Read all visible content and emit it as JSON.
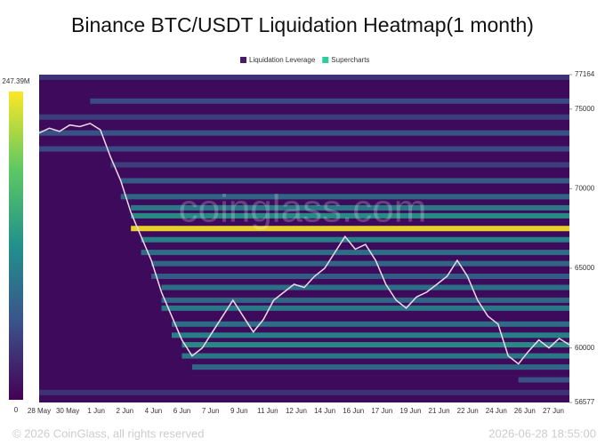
{
  "chart_data": {
    "type": "heatmap",
    "title": "Binance BTC/USDT Liquidation Heatmap(1 month)",
    "legend": [
      {
        "name": "Liquidation Leverage",
        "color": "#4b1a6b"
      },
      {
        "name": "Supercharts",
        "color": "#2ecc9a"
      }
    ],
    "categories": [
      "28 May",
      "30 May",
      "1 Jun",
      "2 Jun",
      "4 Jun",
      "6 Jun",
      "7 Jun",
      "9 Jun",
      "11 Jun",
      "12 Jun",
      "14 Jun",
      "16 Jun",
      "17 Jun",
      "19 Jun",
      "21 Jun",
      "22 Jun",
      "24 Jun",
      "26 Jun",
      "27 Jun"
    ],
    "ylim": [
      56577,
      77164
    ],
    "yticks": [
      56577,
      60000,
      65000,
      70000,
      75000,
      77164
    ],
    "colorbar": {
      "min": 0,
      "max": {
        "value": 247.39,
        "label": "247.39M"
      }
    },
    "background": "#3e0b5c",
    "price_color": "#f0d8ea",
    "price": [
      73500,
      73800,
      73600,
      74000,
      73900,
      74100,
      73700,
      72000,
      70500,
      68500,
      67000,
      65500,
      63500,
      62000,
      60500,
      59500,
      60000,
      61000,
      62000,
      63000,
      62000,
      61000,
      61800,
      63000,
      63500,
      64000,
      63800,
      64500,
      65000,
      66000,
      67000,
      66200,
      66500,
      65500,
      64000,
      63000,
      62500,
      63200,
      63500,
      64000,
      64500,
      65500,
      64500,
      63000,
      62000,
      61500,
      59500,
      59000,
      59800,
      60500,
      60000,
      60600,
      60200
    ],
    "levels": [
      {
        "price": 77000,
        "intensity": 40
      },
      {
        "price": 75500,
        "intensity": 60
      },
      {
        "price": 74500,
        "intensity": 50
      },
      {
        "price": 73500,
        "intensity": 70
      },
      {
        "price": 72500,
        "intensity": 60
      },
      {
        "price": 71500,
        "intensity": 50
      },
      {
        "price": 70500,
        "intensity": 80
      },
      {
        "price": 69500,
        "intensity": 90
      },
      {
        "price": 68800,
        "intensity": 110
      },
      {
        "price": 68300,
        "intensity": 130
      },
      {
        "price": 67500,
        "intensity": 247
      },
      {
        "price": 66800,
        "intensity": 120
      },
      {
        "price": 66000,
        "intensity": 100
      },
      {
        "price": 65300,
        "intensity": 90
      },
      {
        "price": 64500,
        "intensity": 80
      },
      {
        "price": 63800,
        "intensity": 100
      },
      {
        "price": 63000,
        "intensity": 90
      },
      {
        "price": 62500,
        "intensity": 110
      },
      {
        "price": 61500,
        "intensity": 100
      },
      {
        "price": 60800,
        "intensity": 120
      },
      {
        "price": 60200,
        "intensity": 130
      },
      {
        "price": 59500,
        "intensity": 110
      },
      {
        "price": 58800,
        "intensity": 90
      },
      {
        "price": 58000,
        "intensity": 70
      },
      {
        "price": 57200,
        "intensity": 40
      }
    ],
    "watermark": "coinglass.com",
    "footer": "© 2026 CoinGlass, all rights reserved",
    "timestamp": "2026-06-28 18:55:00"
  }
}
